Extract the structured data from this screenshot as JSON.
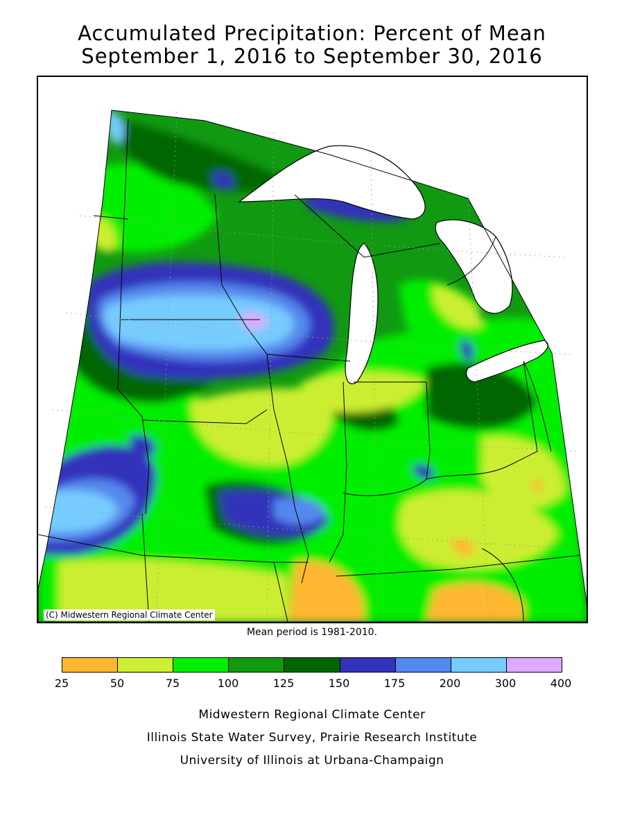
{
  "title": {
    "line1": "Accumulated Precipitation: Percent of Mean",
    "line2": "September 1, 2016 to September 30, 2016"
  },
  "map": {
    "copyright": "(C) Midwestern Regional Climate Center",
    "water_color": "#ffffff",
    "border_color": "#000000"
  },
  "mean_period": "Mean period is 1981-2010.",
  "legend": {
    "ticks": [
      "25",
      "50",
      "75",
      "100",
      "125",
      "150",
      "175",
      "200",
      "300",
      "400"
    ],
    "colors": [
      "#ffb732",
      "#ccee33",
      "#00ee00",
      "#119911",
      "#006600",
      "#3333bb",
      "#5588ee",
      "#77ccff",
      "#ddaaff"
    ]
  },
  "credits": {
    "line1": "Midwestern Regional Climate Center",
    "line2": "Illinois State Water Survey, Prairie Research Institute",
    "line3": "University of Illinois at Urbana-Champaign"
  }
}
